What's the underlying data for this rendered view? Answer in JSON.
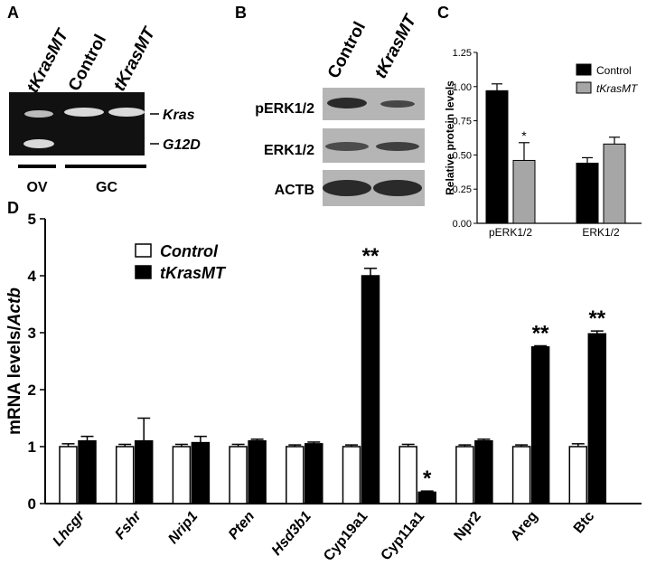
{
  "panel_labels": {
    "a": "A",
    "b": "B",
    "c": "C",
    "d": "D"
  },
  "panel_a": {
    "lane_labels": [
      "tKrasMT",
      "Control",
      "tKrasMT"
    ],
    "band_labels": [
      "Kras",
      "G12D"
    ],
    "group_labels": [
      "OV",
      "GC"
    ],
    "colors": {
      "gel_background": "#111111",
      "band": "#d9d9d9"
    }
  },
  "panel_b": {
    "column_labels": [
      "Control",
      "tKrasMT"
    ],
    "row_labels": [
      "pERK1/2",
      "ERK1/2",
      "ACTB"
    ],
    "colors": {
      "blot_background": "#b5b5b5",
      "band": "#2a2a2a"
    }
  },
  "chart_data": [
    {
      "panel": "C",
      "type": "bar",
      "categories": [
        "pERK1/2",
        "ERK1/2"
      ],
      "series": [
        {
          "name": "Control",
          "values": [
            0.97,
            0.44
          ],
          "errors": [
            0.05,
            0.04
          ],
          "color": "#000000"
        },
        {
          "name": "tKrasMT",
          "values": [
            0.46,
            0.58
          ],
          "errors": [
            0.13,
            0.05
          ],
          "color": "#a6a6a6"
        }
      ],
      "significance": [
        {
          "category": "pERK1/2",
          "series": "tKrasMT",
          "label": "*"
        }
      ],
      "title": "",
      "xlabel": "",
      "ylabel": "Relative protein levels",
      "ylim": [
        0,
        1.25
      ],
      "yticks": [
        "0.00",
        "0.25",
        "0.50",
        "0.75",
        "1.00",
        "1.25"
      ],
      "legend_position": "top-right",
      "grid": false
    },
    {
      "panel": "D",
      "type": "bar",
      "categories": [
        "Lhcgr",
        "Fshr",
        "Nrip1",
        "Pten",
        "Hsd3b1",
        "Cyp19a1",
        "Cyp11a1",
        "Npr2",
        "Areg",
        "Btc"
      ],
      "italic_categories": [
        true,
        true,
        true,
        true,
        true,
        false,
        false,
        false,
        false,
        false
      ],
      "series": [
        {
          "name": "Control",
          "values": [
            1.0,
            1.0,
            1.0,
            1.0,
            1.0,
            1.0,
            1.0,
            1.0,
            1.0,
            1.0
          ],
          "errors": [
            0.05,
            0.04,
            0.04,
            0.04,
            0.03,
            0.03,
            0.04,
            0.03,
            0.03,
            0.05
          ],
          "color": "#ffffff"
        },
        {
          "name": "tKrasMT",
          "values": [
            1.1,
            1.1,
            1.07,
            1.1,
            1.05,
            4.0,
            0.2,
            1.1,
            2.75,
            2.98
          ],
          "errors": [
            0.08,
            0.4,
            0.11,
            0.03,
            0.03,
            0.13,
            0.02,
            0.03,
            0.02,
            0.05
          ],
          "color": "#000000"
        }
      ],
      "significance": [
        {
          "category": "Cyp19a1",
          "label": "**"
        },
        {
          "category": "Cyp11a1",
          "label": "*"
        },
        {
          "category": "Areg",
          "label": "**"
        },
        {
          "category": "Btc",
          "label": "**"
        }
      ],
      "title": "",
      "xlabel": "",
      "ylabel_prefix": "mRNA levels/",
      "ylabel_gene": "Actb",
      "ylim": [
        0,
        5
      ],
      "yticks": [
        "0",
        "1",
        "2",
        "3",
        "4",
        "5"
      ],
      "legend_position": "top-left",
      "grid": false
    }
  ]
}
